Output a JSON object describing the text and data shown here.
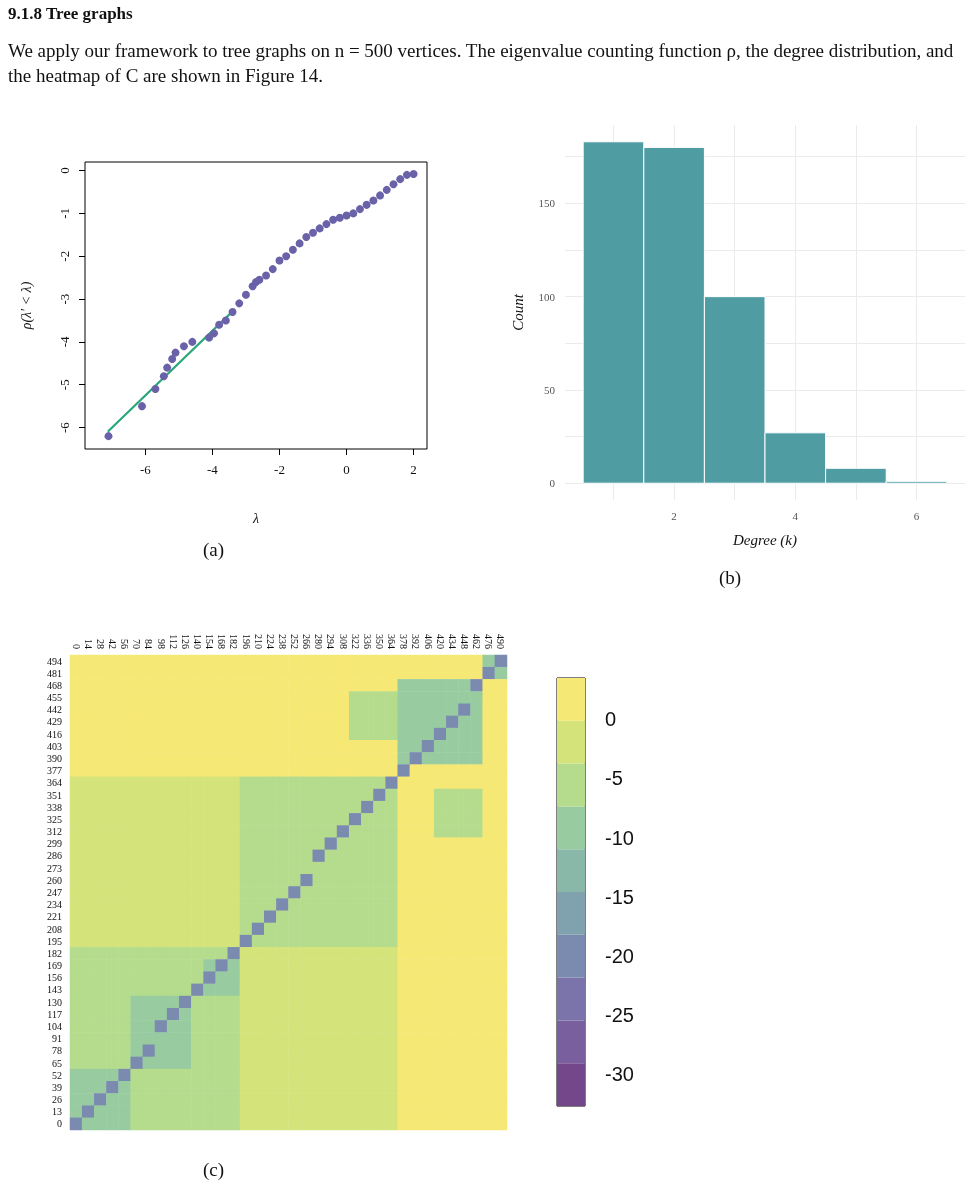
{
  "chart_data": [
    {
      "type": "scatter",
      "title": "9.1.8 Tree graphs",
      "subtitle": "We apply our framework to tree graphs on n = 500 vertices. The eigenvalue counting function ρ, the degree distribution, and the heatmap of C are shown in Figure 14.",
      "xlabel": "λ",
      "ylabel": "ρ(λ′ < λ)",
      "xlim": [
        -7.8,
        2.4
      ],
      "ylim": [
        -6.5,
        0.2
      ],
      "xticks": [
        -6,
        -4,
        -2,
        0,
        2
      ],
      "yticks": [
        -6,
        -5,
        -4,
        -3,
        -2,
        -1,
        0
      ],
      "line_style": "solid",
      "annotations": [
        "(a)"
      ],
      "series": [
        {
          "type": "scatter",
          "marker": "circle",
          "color": "#6a62a8",
          "x": [
            -7.1,
            -6.1,
            -5.7,
            -5.45,
            -5.35,
            -5.2,
            -5.1,
            -4.85,
            -4.6,
            -4.1,
            -3.95,
            -3.8,
            -3.6,
            -3.4,
            -3.2,
            -3.0,
            -2.8,
            -2.7,
            -2.6,
            -2.4,
            -2.2,
            -2.0,
            -1.8,
            -1.6,
            -1.4,
            -1.2,
            -1.0,
            -0.8,
            -0.6,
            -0.4,
            -0.2,
            0.0,
            0.2,
            0.4,
            0.6,
            0.8,
            1.0,
            1.2,
            1.4,
            1.6,
            1.8,
            2.0
          ],
          "values": [
            -6.2,
            -5.5,
            -5.1,
            -4.8,
            -4.6,
            -4.4,
            -4.25,
            -4.1,
            -4.0,
            -3.9,
            -3.8,
            -3.6,
            -3.5,
            -3.3,
            -3.1,
            -2.9,
            -2.7,
            -2.6,
            -2.55,
            -2.45,
            -2.3,
            -2.1,
            -2.0,
            -1.85,
            -1.7,
            -1.55,
            -1.45,
            -1.35,
            -1.25,
            -1.15,
            -1.1,
            -1.05,
            -1.0,
            -0.9,
            -0.8,
            -0.7,
            -0.58,
            -0.45,
            -0.32,
            -0.2,
            -0.1,
            -0.08
          ]
        },
        {
          "type": "line",
          "marker": "none",
          "color": "#2aa87a",
          "x": [
            -7.1,
            -3.35
          ],
          "values": [
            -6.08,
            -3.25
          ]
        }
      ]
    },
    {
      "type": "histogram",
      "xlabel": "Degree (k)",
      "ylabel": "Count",
      "bins": [
        0.5,
        1.5,
        2.5,
        3.5,
        4.5,
        5.5,
        6.5
      ],
      "values": [
        183,
        180,
        100,
        27,
        8,
        1
      ],
      "color": "#4f9ca3",
      "xlim": [
        0.2,
        6.8
      ],
      "ylim": [
        -9,
        192
      ],
      "xticks": [
        {
          "value": 1,
          "label": null
        },
        2,
        {
          "value": 3,
          "label": null
        },
        4,
        {
          "value": 5,
          "label": null
        },
        6
      ],
      "yticks": [
        0,
        {
          "value": 25,
          "label": null
        },
        50,
        {
          "value": 75,
          "label": null
        },
        100,
        {
          "value": 125,
          "label": null
        },
        150,
        {
          "value": 175,
          "label": null
        }
      ],
      "grid": true,
      "annotations": [
        "(b)"
      ]
    },
    {
      "type": "heatmap",
      "annotations": [
        "(c)"
      ],
      "clim": [
        -32.7,
        3.5
      ],
      "cticks": [
        0,
        -5,
        -10,
        -15,
        -20,
        -25,
        -30
      ],
      "colors": [
        "#74468a",
        "#7a5f9f",
        "#7a74ab",
        "#7b8bb0",
        "#80a2ae",
        "#89b8a8",
        "#98cca0",
        "#b4dc8c",
        "#d4e37a",
        "#f6e874"
      ],
      "categories": [
        "0",
        "14",
        "28",
        "42",
        "56",
        "70",
        "84",
        "98",
        "112",
        "126",
        "140",
        "154",
        "168",
        "182",
        "196",
        "210",
        "224",
        "238",
        "252",
        "266",
        "280",
        "294",
        "308",
        "322",
        "336",
        "350",
        "364",
        "378",
        "392",
        "406",
        "420",
        "434",
        "448",
        "462",
        "476",
        "490"
      ],
      "y_categories": [
        "494",
        "481",
        "468",
        "455",
        "442",
        "429",
        "416",
        "403",
        "390",
        "377",
        "364",
        "351",
        "338",
        "325",
        "312",
        "299",
        "286",
        "273",
        "260",
        "247",
        "234",
        "221",
        "208",
        "195",
        "182",
        "169",
        "156",
        "143",
        "130",
        "117",
        "104",
        "91",
        "78",
        "65",
        "52",
        "39",
        "26",
        "13",
        "0"
      ],
      "cells": [
        [
          1,
          1,
          1,
          1,
          1,
          1,
          1,
          1,
          1,
          1,
          1,
          1,
          1,
          1,
          1,
          1,
          1,
          1,
          1,
          1,
          1,
          1,
          1,
          1,
          1,
          1,
          1,
          1,
          1,
          1,
          1,
          1,
          1,
          1,
          -9,
          -20
        ],
        [
          1,
          1,
          1,
          1,
          1,
          1,
          1,
          1,
          1,
          1,
          1,
          1,
          1,
          1,
          1,
          1,
          1,
          1,
          1,
          1,
          1,
          1,
          1,
          1,
          1,
          1,
          1,
          1,
          1,
          1,
          1,
          1,
          1,
          1,
          -20,
          -9
        ],
        [
          1,
          1,
          1,
          1,
          1,
          1,
          1,
          1,
          1,
          1,
          1,
          1,
          1,
          1,
          1,
          1,
          1,
          1,
          1,
          1,
          1,
          1,
          1,
          1,
          1,
          1,
          1,
          -9,
          -9,
          -9,
          -9,
          -9,
          -9,
          -20,
          1,
          1
        ],
        [
          1,
          1,
          1,
          1,
          1,
          1,
          1,
          1,
          1,
          1,
          1,
          1,
          1,
          1,
          1,
          1,
          1,
          1,
          1,
          1,
          1,
          1,
          1,
          -6,
          -6,
          -6,
          -6,
          -9,
          -9,
          -9,
          -9,
          -9,
          -9,
          -9,
          1,
          1
        ],
        [
          1,
          1,
          1,
          1,
          1,
          1,
          1,
          1,
          1,
          1,
          1,
          1,
          1,
          1,
          1,
          1,
          1,
          1,
          1,
          1,
          1,
          1,
          1,
          -6,
          -6,
          -6,
          -6,
          -9,
          -9,
          -9,
          -9,
          -9,
          -20,
          -9,
          1,
          1
        ],
        [
          1,
          1,
          1,
          1,
          1,
          1,
          1,
          1,
          1,
          1,
          1,
          1,
          1,
          1,
          1,
          1,
          1,
          1,
          1,
          1,
          1,
          1,
          1,
          -6,
          -6,
          -6,
          -6,
          -9,
          -9,
          -9,
          -9,
          -20,
          -9,
          -9,
          1,
          1
        ],
        [
          1,
          1,
          1,
          1,
          1,
          1,
          1,
          1,
          1,
          1,
          1,
          1,
          1,
          1,
          1,
          1,
          1,
          1,
          1,
          1,
          1,
          1,
          1,
          -6,
          -6,
          -6,
          -6,
          -9,
          -9,
          -9,
          -20,
          -9,
          -9,
          -9,
          1,
          1
        ],
        [
          1,
          1,
          1,
          1,
          1,
          1,
          1,
          1,
          1,
          1,
          1,
          1,
          1,
          1,
          1,
          1,
          1,
          1,
          1,
          1,
          1,
          1,
          1,
          1,
          1,
          1,
          1,
          -9,
          -9,
          -20,
          -9,
          -9,
          -9,
          -9,
          1,
          1
        ],
        [
          1,
          1,
          1,
          1,
          1,
          1,
          1,
          1,
          1,
          1,
          1,
          1,
          1,
          1,
          1,
          1,
          1,
          1,
          1,
          1,
          1,
          1,
          1,
          1,
          1,
          1,
          1,
          -9,
          -20,
          -9,
          -9,
          -9,
          -9,
          -9,
          1,
          1
        ],
        [
          1,
          1,
          1,
          1,
          1,
          1,
          1,
          1,
          1,
          1,
          1,
          1,
          1,
          1,
          1,
          1,
          1,
          1,
          1,
          1,
          1,
          1,
          1,
          1,
          1,
          1,
          1,
          -20,
          1,
          1,
          1,
          1,
          1,
          1,
          1,
          1
        ],
        [
          -2,
          -2,
          -2,
          -2,
          -2,
          -2,
          -2,
          -2,
          -2,
          -2,
          -2,
          -2,
          -2,
          -2,
          -6,
          -6,
          -6,
          -6,
          -6,
          -6,
          -6,
          -6,
          -6,
          -6,
          -6,
          -6,
          -20,
          1,
          1,
          1,
          1,
          1,
          1,
          1,
          1,
          1
        ],
        [
          -2,
          -2,
          -2,
          -2,
          -2,
          -2,
          -2,
          -2,
          -2,
          -2,
          -2,
          -2,
          -2,
          -2,
          -6,
          -6,
          -6,
          -6,
          -6,
          -6,
          -6,
          -6,
          -6,
          -6,
          -6,
          -20,
          -6,
          1,
          1,
          1,
          -6,
          -6,
          -6,
          -6,
          1,
          1
        ],
        [
          -2,
          -2,
          -2,
          -2,
          -2,
          -2,
          -2,
          -2,
          -2,
          -2,
          -2,
          -2,
          -2,
          -2,
          -6,
          -6,
          -6,
          -6,
          -6,
          -6,
          -6,
          -6,
          -6,
          -6,
          -20,
          -6,
          -6,
          1,
          1,
          1,
          -6,
          -6,
          -6,
          -6,
          1,
          1
        ],
        [
          -2,
          -2,
          -2,
          -2,
          -2,
          -2,
          -2,
          -2,
          -2,
          -2,
          -2,
          -2,
          -2,
          -2,
          -6,
          -6,
          -6,
          -6,
          -6,
          -6,
          -6,
          -6,
          -6,
          -20,
          -6,
          -6,
          -6,
          1,
          1,
          1,
          -6,
          -6,
          -6,
          -6,
          1,
          1
        ],
        [
          -2,
          -2,
          -2,
          -2,
          -2,
          -2,
          -2,
          -2,
          -2,
          -2,
          -2,
          -2,
          -2,
          -2,
          -6,
          -6,
          -6,
          -6,
          -6,
          -6,
          -6,
          -6,
          -20,
          -6,
          -6,
          -6,
          -6,
          1,
          1,
          1,
          -6,
          -6,
          -6,
          -6,
          1,
          1
        ],
        [
          -2,
          -2,
          -2,
          -2,
          -2,
          -2,
          -2,
          -2,
          -2,
          -2,
          -2,
          -2,
          -2,
          -2,
          -6,
          -6,
          -6,
          -6,
          -6,
          -6,
          -6,
          -20,
          -6,
          -6,
          -6,
          -6,
          -6,
          1,
          1,
          1,
          1,
          1,
          1,
          1,
          1,
          1
        ],
        [
          -2,
          -2,
          -2,
          -2,
          -2,
          -2,
          -2,
          -2,
          -2,
          -2,
          -2,
          -2,
          -2,
          -2,
          -6,
          -6,
          -6,
          -6,
          -6,
          -6,
          -20,
          -6,
          -6,
          -6,
          -6,
          -6,
          -6,
          1,
          1,
          1,
          1,
          1,
          1,
          1,
          1,
          1
        ],
        [
          -2,
          -2,
          -2,
          -2,
          -2,
          -2,
          -2,
          -2,
          -2,
          -2,
          -2,
          -2,
          -2,
          -2,
          -6,
          -6,
          -6,
          -6,
          -6,
          -6,
          -6,
          -6,
          -6,
          -6,
          -6,
          -6,
          -6,
          1,
          1,
          1,
          1,
          1,
          1,
          1,
          1,
          1
        ],
        [
          -2,
          -2,
          -2,
          -2,
          -2,
          -2,
          -2,
          -2,
          -2,
          -2,
          -2,
          -2,
          -2,
          -2,
          -6,
          -6,
          -6,
          -6,
          -6,
          -20,
          -6,
          -6,
          -6,
          -6,
          -6,
          -6,
          -6,
          1,
          1,
          1,
          1,
          1,
          1,
          1,
          1,
          1
        ],
        [
          -2,
          -2,
          -2,
          -2,
          -2,
          -2,
          -2,
          -2,
          -2,
          -2,
          -2,
          -2,
          -2,
          -2,
          -6,
          -6,
          -6,
          -6,
          -20,
          -6,
          -6,
          -6,
          -6,
          -6,
          -6,
          -6,
          -6,
          1,
          1,
          1,
          1,
          1,
          1,
          1,
          1,
          1
        ],
        [
          -2,
          -2,
          -2,
          -2,
          -2,
          -2,
          -2,
          -2,
          -2,
          -2,
          -2,
          -2,
          -2,
          -2,
          -6,
          -6,
          -6,
          -20,
          -6,
          -6,
          -6,
          -6,
          -6,
          -6,
          -6,
          -6,
          -6,
          1,
          1,
          1,
          1,
          1,
          1,
          1,
          1,
          1
        ],
        [
          -2,
          -2,
          -2,
          -2,
          -2,
          -2,
          -2,
          -2,
          -2,
          -2,
          -2,
          -2,
          -2,
          -2,
          -6,
          -6,
          -20,
          -6,
          -6,
          -6,
          -6,
          -6,
          -6,
          -6,
          -6,
          -6,
          -6,
          1,
          1,
          1,
          1,
          1,
          1,
          1,
          1,
          1
        ],
        [
          -2,
          -2,
          -2,
          -2,
          -2,
          -2,
          -2,
          -2,
          -2,
          -2,
          -2,
          -2,
          -2,
          -2,
          -6,
          -20,
          -6,
          -6,
          -6,
          -6,
          -6,
          -6,
          -6,
          -6,
          -6,
          -6,
          -6,
          1,
          1,
          1,
          1,
          1,
          1,
          1,
          1,
          1
        ],
        [
          -2,
          -2,
          -2,
          -2,
          -2,
          -2,
          -2,
          -2,
          -2,
          -2,
          -2,
          -2,
          -2,
          -2,
          -20,
          -6,
          -6,
          -6,
          -6,
          -6,
          -6,
          -6,
          -6,
          -6,
          -6,
          -6,
          -6,
          1,
          1,
          1,
          1,
          1,
          1,
          1,
          1,
          1
        ],
        [
          -6,
          -6,
          -6,
          -6,
          -6,
          -6,
          -6,
          -6,
          -6,
          -6,
          -6,
          -6,
          -6,
          -20,
          -2,
          -2,
          -2,
          -2,
          -2,
          -2,
          -2,
          -2,
          -2,
          -2,
          -2,
          -2,
          -2,
          1,
          1,
          1,
          1,
          1,
          1,
          1,
          1,
          1
        ],
        [
          -6,
          -6,
          -6,
          -6,
          -6,
          -6,
          -6,
          -6,
          -6,
          -6,
          -6,
          -9,
          -20,
          -9,
          -2,
          -2,
          -2,
          -2,
          -2,
          -2,
          -2,
          -2,
          -2,
          -2,
          -2,
          -2,
          -2,
          1,
          1,
          1,
          1,
          1,
          1,
          1,
          1,
          1
        ],
        [
          -6,
          -6,
          -6,
          -6,
          -6,
          -6,
          -6,
          -6,
          -6,
          -6,
          -6,
          -20,
          -9,
          -9,
          -2,
          -2,
          -2,
          -2,
          -2,
          -2,
          -2,
          -2,
          -2,
          -2,
          -2,
          -2,
          -2,
          1,
          1,
          1,
          1,
          1,
          1,
          1,
          1,
          1
        ],
        [
          -6,
          -6,
          -6,
          -6,
          -6,
          -6,
          -6,
          -6,
          -6,
          -6,
          -20,
          -9,
          -9,
          -9,
          -2,
          -2,
          -2,
          -2,
          -2,
          -2,
          -2,
          -2,
          -2,
          -2,
          -2,
          -2,
          -2,
          1,
          1,
          1,
          1,
          1,
          1,
          1,
          1,
          1
        ],
        [
          -6,
          -6,
          -6,
          -6,
          -6,
          -9,
          -9,
          -9,
          -9,
          -20,
          -6,
          -6,
          -6,
          -6,
          -2,
          -2,
          -2,
          -2,
          -2,
          -2,
          -2,
          -2,
          -2,
          -2,
          -2,
          -2,
          -2,
          1,
          1,
          1,
          1,
          1,
          1,
          1,
          1,
          1
        ],
        [
          -6,
          -6,
          -6,
          -6,
          -6,
          -9,
          -9,
          -9,
          -20,
          -9,
          -6,
          -6,
          -6,
          -6,
          -2,
          -2,
          -2,
          -2,
          -2,
          -2,
          -2,
          -2,
          -2,
          -2,
          -2,
          -2,
          -2,
          1,
          1,
          1,
          1,
          1,
          1,
          1,
          1,
          1
        ],
        [
          -6,
          -6,
          -6,
          -6,
          -6,
          -9,
          -9,
          -20,
          -9,
          -9,
          -6,
          -6,
          -6,
          -6,
          -2,
          -2,
          -2,
          -2,
          -2,
          -2,
          -2,
          -2,
          -2,
          -2,
          -2,
          -2,
          -2,
          1,
          1,
          1,
          1,
          1,
          1,
          1,
          1,
          1
        ],
        [
          -6,
          -6,
          -6,
          -6,
          -6,
          -9,
          -9,
          -9,
          -9,
          -9,
          -6,
          -6,
          -6,
          -6,
          -2,
          -2,
          -2,
          -2,
          -2,
          -2,
          -2,
          -2,
          -2,
          -2,
          -2,
          -2,
          -2,
          1,
          1,
          1,
          1,
          1,
          1,
          1,
          1,
          1
        ],
        [
          -6,
          -6,
          -6,
          -6,
          -6,
          -9,
          -20,
          -9,
          -9,
          -9,
          -6,
          -6,
          -6,
          -6,
          -2,
          -2,
          -2,
          -2,
          -2,
          -2,
          -2,
          -2,
          -2,
          -2,
          -2,
          -2,
          -2,
          1,
          1,
          1,
          1,
          1,
          1,
          1,
          1,
          1
        ],
        [
          -6,
          -6,
          -6,
          -6,
          -6,
          -20,
          -9,
          -9,
          -9,
          -9,
          -6,
          -6,
          -6,
          -6,
          -2,
          -2,
          -2,
          -2,
          -2,
          -2,
          -2,
          -2,
          -2,
          -2,
          -2,
          -2,
          -2,
          1,
          1,
          1,
          1,
          1,
          1,
          1,
          1,
          1
        ],
        [
          -9,
          -9,
          -9,
          -9,
          -20,
          -6,
          -6,
          -6,
          -6,
          -6,
          -6,
          -6,
          -6,
          -6,
          -2,
          -2,
          -2,
          -2,
          -2,
          -2,
          -2,
          -2,
          -2,
          -2,
          -2,
          -2,
          -2,
          1,
          1,
          1,
          1,
          1,
          1,
          1,
          1,
          1
        ],
        [
          -9,
          -9,
          -9,
          -20,
          -9,
          -6,
          -6,
          -6,
          -6,
          -6,
          -6,
          -6,
          -6,
          -6,
          -2,
          -2,
          -2,
          -2,
          -2,
          -2,
          -2,
          -2,
          -2,
          -2,
          -2,
          -2,
          -2,
          1,
          1,
          1,
          1,
          1,
          1,
          1,
          1,
          1
        ],
        [
          -9,
          -9,
          -20,
          -9,
          -9,
          -6,
          -6,
          -6,
          -6,
          -6,
          -6,
          -6,
          -6,
          -6,
          -2,
          -2,
          -2,
          -2,
          -2,
          -2,
          -2,
          -2,
          -2,
          -2,
          -2,
          -2,
          -2,
          1,
          1,
          1,
          1,
          1,
          1,
          1,
          1,
          1
        ],
        [
          -9,
          -20,
          -9,
          -9,
          -9,
          -6,
          -6,
          -6,
          -6,
          -6,
          -6,
          -6,
          -6,
          -6,
          -2,
          -2,
          -2,
          -2,
          -2,
          -2,
          -2,
          -2,
          -2,
          -2,
          -2,
          -2,
          -2,
          1,
          1,
          1,
          1,
          1,
          1,
          1,
          1,
          1
        ],
        [
          -20,
          -9,
          -9,
          -9,
          -9,
          -6,
          -6,
          -6,
          -6,
          -6,
          -6,
          -6,
          -6,
          -6,
          -2,
          -2,
          -2,
          -2,
          -2,
          -2,
          -2,
          -2,
          -2,
          -2,
          -2,
          -2,
          -2,
          1,
          1,
          1,
          1,
          1,
          1,
          1,
          1,
          1
        ]
      ]
    }
  ]
}
